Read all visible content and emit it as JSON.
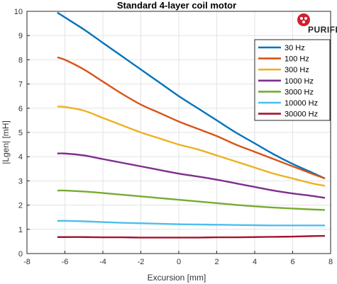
{
  "chart_data": {
    "type": "line",
    "title": "Standard 4-layer coil motor",
    "xlabel": "Excursion [mm]",
    "ylabel": "|Lgen| [mH]",
    "xlim": [
      -8,
      8
    ],
    "ylim": [
      0,
      10
    ],
    "xticks": [
      -8,
      -6,
      -4,
      -2,
      0,
      2,
      4,
      6,
      8
    ],
    "yticks": [
      0,
      1,
      2,
      3,
      4,
      5,
      6,
      7,
      8,
      9,
      10
    ],
    "grid": true,
    "legend_position": "top-right",
    "logo_text": "PURIFI",
    "series": [
      {
        "name": "30 Hz",
        "color": "#0072BD",
        "x": [
          -6.4,
          -6,
          -5,
          -4,
          -3,
          -2,
          -1,
          0,
          1,
          2,
          3,
          4,
          5,
          6,
          7,
          7.7
        ],
        "y": [
          9.95,
          9.75,
          9.25,
          8.7,
          8.15,
          7.6,
          7.05,
          6.5,
          6.0,
          5.5,
          5.0,
          4.55,
          4.1,
          3.7,
          3.35,
          3.1
        ]
      },
      {
        "name": "100 Hz",
        "color": "#D95319",
        "x": [
          -6.4,
          -6,
          -5,
          -4,
          -3,
          -2,
          -1,
          0,
          1,
          2,
          3,
          4,
          5,
          6,
          7,
          7.7
        ],
        "y": [
          8.1,
          8.0,
          7.6,
          7.1,
          6.6,
          6.15,
          5.8,
          5.45,
          5.15,
          4.85,
          4.5,
          4.2,
          3.9,
          3.6,
          3.3,
          3.1
        ]
      },
      {
        "name": "300 Hz",
        "color": "#EDB120",
        "x": [
          -6.4,
          -6,
          -5,
          -4,
          -3,
          -2,
          -1,
          0,
          1,
          2,
          3,
          4,
          5,
          6,
          7,
          7.7
        ],
        "y": [
          6.07,
          6.05,
          5.9,
          5.6,
          5.3,
          5.0,
          4.75,
          4.5,
          4.3,
          4.05,
          3.8,
          3.55,
          3.3,
          3.1,
          2.9,
          2.8
        ]
      },
      {
        "name": "1000 Hz",
        "color": "#7E2F8E",
        "x": [
          -6.4,
          -6,
          -5,
          -4,
          -3,
          -2,
          -1,
          0,
          1,
          2,
          3,
          4,
          5,
          6,
          7,
          7.7
        ],
        "y": [
          4.13,
          4.13,
          4.05,
          3.9,
          3.75,
          3.6,
          3.45,
          3.3,
          3.18,
          3.05,
          2.9,
          2.75,
          2.6,
          2.48,
          2.38,
          2.3
        ]
      },
      {
        "name": "3000 Hz",
        "color": "#77AC30",
        "x": [
          -6.4,
          -6,
          -5,
          -4,
          -3,
          -2,
          -1,
          0,
          1,
          2,
          3,
          4,
          5,
          6,
          7,
          7.7
        ],
        "y": [
          2.6,
          2.6,
          2.56,
          2.5,
          2.43,
          2.36,
          2.29,
          2.22,
          2.15,
          2.08,
          2.01,
          1.95,
          1.9,
          1.86,
          1.82,
          1.8
        ]
      },
      {
        "name": "10000 Hz",
        "color": "#4DBEEE",
        "x": [
          -6.4,
          -6,
          -5,
          -4,
          -3,
          -2,
          -1,
          0,
          1,
          2,
          3,
          4,
          5,
          6,
          7,
          7.7
        ],
        "y": [
          1.35,
          1.35,
          1.33,
          1.3,
          1.27,
          1.25,
          1.23,
          1.21,
          1.2,
          1.19,
          1.18,
          1.17,
          1.16,
          1.16,
          1.16,
          1.16
        ]
      },
      {
        "name": "30000 Hz",
        "color": "#A2142F",
        "x": [
          -6.4,
          -6,
          -5,
          -4,
          -3,
          -2,
          -1,
          0,
          1,
          2,
          3,
          4,
          5,
          6,
          7,
          7.7
        ],
        "y": [
          0.68,
          0.68,
          0.68,
          0.67,
          0.67,
          0.66,
          0.66,
          0.66,
          0.66,
          0.67,
          0.67,
          0.68,
          0.69,
          0.7,
          0.72,
          0.73
        ]
      }
    ]
  }
}
